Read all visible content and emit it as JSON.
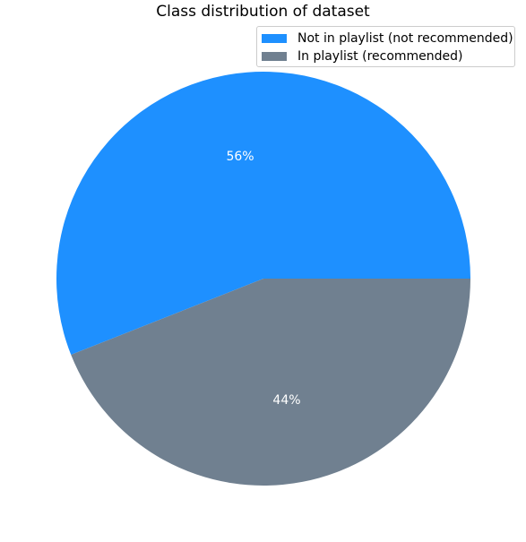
{
  "chart_data": {
    "type": "pie",
    "title": "Class distribution of dataset",
    "labels": [
      "Not in playlist (not recommended)",
      "In playlist (recommended)"
    ],
    "values": [
      56,
      44
    ],
    "pct_labels": [
      "56%",
      "44%"
    ],
    "colors": [
      "#1e90ff",
      "#708090"
    ],
    "legend_position": "top-right",
    "start_angle_deg": 0,
    "direction": "counterclockwise"
  }
}
